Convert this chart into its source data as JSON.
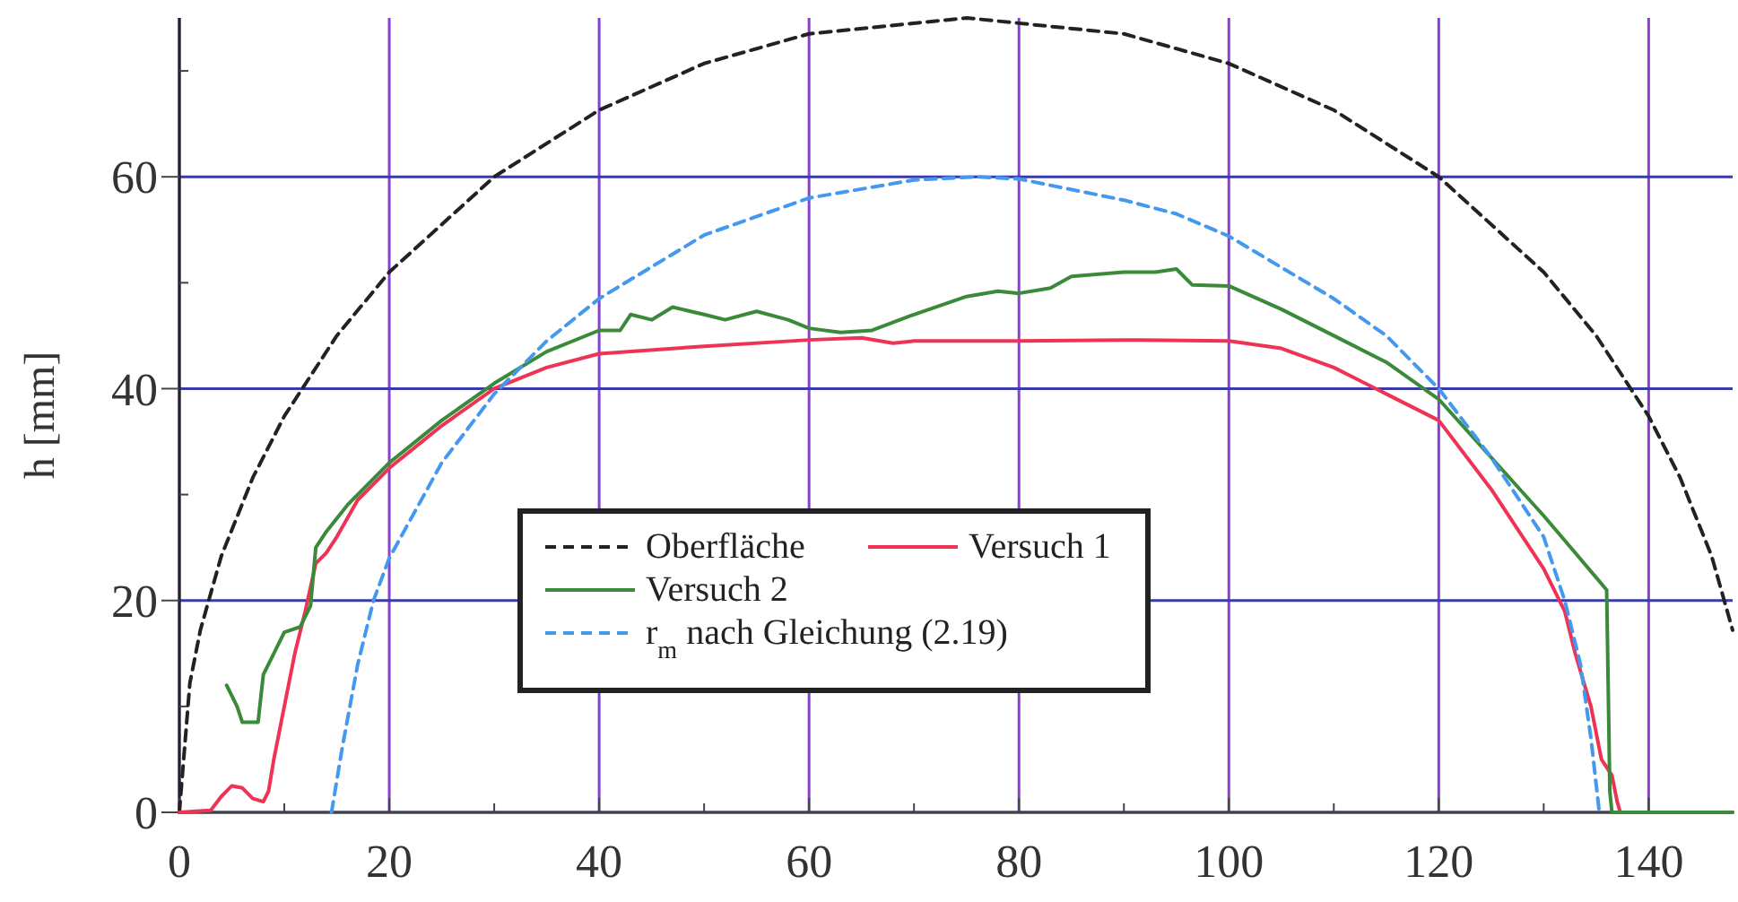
{
  "chart_data": {
    "type": "line",
    "ylabel": "h [mm]",
    "xlim": [
      0,
      148
    ],
    "ylim": [
      0,
      75
    ],
    "xticks": [
      0,
      {
        "value": 10,
        "label": null
      },
      20,
      {
        "value": 30,
        "label": null
      },
      40,
      {
        "value": 50,
        "label": null
      },
      60,
      {
        "value": 70,
        "label": null
      },
      80,
      {
        "value": 90,
        "label": null
      },
      100,
      {
        "value": 110,
        "label": null
      },
      120,
      {
        "value": 130,
        "label": null
      },
      140
    ],
    "yticks": [
      0,
      {
        "value": 10,
        "label": null
      },
      20,
      {
        "value": 30,
        "label": null
      },
      40,
      {
        "value": 50,
        "label": null
      },
      60,
      {
        "value": 70,
        "label": null
      }
    ],
    "grid": true,
    "legend": "center",
    "marker": "none",
    "series": [
      {
        "name": "Oberfläche",
        "color": "#222222",
        "line_style": "dashed",
        "x": [
          0,
          1,
          2,
          4,
          7,
          10,
          15,
          20,
          30,
          40,
          50,
          60,
          75,
          90,
          100,
          110,
          120,
          130,
          135,
          140,
          143,
          146,
          148
        ],
        "values": [
          0,
          12.2,
          17.2,
          24.2,
          31.6,
          37.4,
          45,
          51,
          60,
          66.3,
          70.7,
          73.5,
          75,
          73.5,
          70.7,
          66.3,
          60,
          51,
          45,
          37.4,
          31.6,
          24.2,
          17.2
        ]
      },
      {
        "name": "Versuch 1",
        "color": "#ee3355",
        "line_style": "solid",
        "x": [
          0,
          3,
          4,
          5,
          6,
          7,
          8,
          8.5,
          9,
          10,
          11,
          12,
          13,
          14,
          15,
          17,
          20,
          25,
          30,
          35,
          40,
          50,
          60,
          65,
          68,
          70,
          80,
          90,
          100,
          105,
          110,
          115,
          120,
          125,
          130,
          132,
          133,
          134.5,
          135.5,
          136.5,
          137,
          137.3,
          140,
          148
        ],
        "values": [
          0,
          0.2,
          1.5,
          2.5,
          2.3,
          1.3,
          1,
          2,
          5,
          10,
          15,
          19,
          23.5,
          24.5,
          26,
          29.5,
          32.5,
          36.5,
          40,
          42,
          43.3,
          44,
          44.6,
          44.8,
          44.3,
          44.5,
          44.5,
          44.6,
          44.5,
          43.8,
          42,
          39.5,
          37,
          30.5,
          23,
          19,
          15,
          10,
          5,
          3.5,
          1,
          0,
          0,
          0
        ]
      },
      {
        "name": "Versuch 2",
        "color": "#3a8a3a",
        "line_style": "solid",
        "x": [
          4.5,
          5.5,
          6,
          7,
          7.5,
          8,
          9,
          10,
          11.5,
          12.5,
          13,
          14,
          16,
          20,
          25,
          30,
          35,
          40,
          42,
          43,
          45,
          47,
          50,
          52,
          55,
          58,
          60,
          63,
          66,
          70,
          75,
          78,
          80,
          83,
          85,
          90,
          93,
          95,
          96.5,
          100,
          105,
          110,
          115,
          120,
          125,
          130,
          133,
          136,
          136.3,
          136.5,
          140,
          148
        ],
        "values": [
          12,
          10,
          8.5,
          8.5,
          8.5,
          13,
          15,
          17,
          17.5,
          19.5,
          25,
          26.5,
          29,
          33,
          37,
          40.5,
          43.5,
          45.5,
          45.5,
          47,
          46.5,
          47.7,
          47,
          46.5,
          47.3,
          46.5,
          45.7,
          45.3,
          45.5,
          47,
          48.7,
          49.2,
          49,
          49.5,
          50.6,
          51,
          51,
          51.3,
          49.8,
          49.7,
          47.5,
          45,
          42.5,
          39,
          33.5,
          28,
          24.5,
          21,
          2,
          0,
          0,
          0
        ]
      },
      {
        "name": "r$_{m}$ nach Gleichung (2.19)",
        "color": "#4499ee",
        "line_style": "dashed",
        "x": [
          14.5,
          15.5,
          17,
          18.5,
          20,
          25,
          30,
          35,
          40,
          50,
          60,
          70,
          76,
          80,
          90,
          95,
          100,
          110,
          115,
          120,
          125,
          130,
          132,
          133.5,
          134.5,
          135.3
        ],
        "values": [
          0,
          6,
          14,
          20,
          24,
          33,
          39.5,
          44.5,
          48.5,
          54.5,
          58,
          59.7,
          60,
          59.8,
          57.8,
          56.5,
          54.4,
          48.5,
          45,
          40,
          33.5,
          26,
          20,
          14,
          7,
          0
        ]
      }
    ]
  }
}
